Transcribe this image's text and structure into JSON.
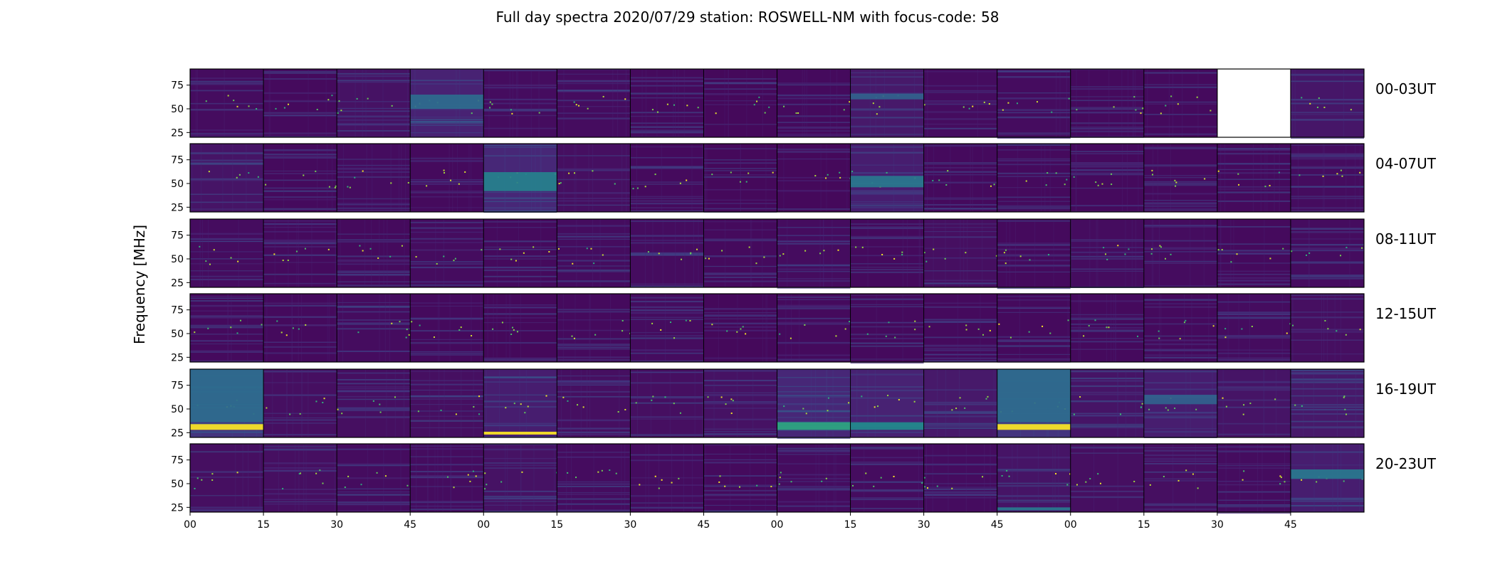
{
  "chart_data": {
    "type": "heatmap",
    "title": "Full day spectra 2020/07/29 station: ROSWELL-NM with focus-code: 58",
    "ylabel": "Frequency [MHz]",
    "xlabel": "",
    "y_range_mhz": [
      20,
      92
    ],
    "y_ticks": [
      "75",
      "50",
      "25"
    ],
    "y_tick_values": [
      75,
      50,
      25
    ],
    "x_ticks": [
      "00",
      "15",
      "30",
      "45",
      "00",
      "15",
      "30",
      "45",
      "00",
      "15",
      "30",
      "45",
      "00",
      "15",
      "30",
      "45"
    ],
    "panels_per_row": 16,
    "minutes_per_panel": 15,
    "colormap": "viridis",
    "colors": {
      "background": "#440154",
      "mid": "#3b528b",
      "teal": "#21918c",
      "green": "#5ec962",
      "yellow": "#fde725",
      "missing": "#ffffff"
    },
    "rows": [
      {
        "label": "00-03UT",
        "panel_intensity": [
          0.12,
          0.1,
          0.18,
          0.35,
          0.12,
          0.12,
          0.1,
          0.08,
          0.1,
          0.25,
          0.12,
          0.12,
          0.1,
          0.1,
          null,
          0.22
        ],
        "missing_panels": [
          14
        ]
      },
      {
        "label": "04-07UT",
        "panel_intensity": [
          0.2,
          0.1,
          0.12,
          0.1,
          0.4,
          0.15,
          0.1,
          0.08,
          0.08,
          0.3,
          0.1,
          0.1,
          0.1,
          0.1,
          0.1,
          0.12
        ],
        "missing_panels": []
      },
      {
        "label": "08-11UT",
        "panel_intensity": [
          0.12,
          0.1,
          0.1,
          0.12,
          0.1,
          0.12,
          0.12,
          0.1,
          0.12,
          0.1,
          0.15,
          0.1,
          0.12,
          0.12,
          0.1,
          0.12
        ],
        "missing_panels": []
      },
      {
        "label": "12-15UT",
        "panel_intensity": [
          0.1,
          0.1,
          0.12,
          0.1,
          0.08,
          0.1,
          0.12,
          0.08,
          0.1,
          0.1,
          0.1,
          0.1,
          0.1,
          0.1,
          0.12,
          0.15
        ],
        "missing_panels": []
      },
      {
        "label": "16-19UT",
        "panel_intensity": [
          0.55,
          0.15,
          0.15,
          0.15,
          0.3,
          0.15,
          0.15,
          0.18,
          0.4,
          0.35,
          0.25,
          0.55,
          0.2,
          0.3,
          0.2,
          0.25
        ],
        "missing_panels": []
      },
      {
        "label": "20-23UT",
        "panel_intensity": [
          0.15,
          0.15,
          0.12,
          0.12,
          0.18,
          0.12,
          0.12,
          0.1,
          0.12,
          0.12,
          0.12,
          0.2,
          0.15,
          0.15,
          0.12,
          0.3
        ],
        "missing_panels": []
      }
    ],
    "band_features": [
      {
        "row": 0,
        "panel": 3,
        "mhz": [
          50,
          65
        ],
        "level": 0.45
      },
      {
        "row": 0,
        "panel": 9,
        "mhz": [
          60,
          66
        ],
        "level": 0.4
      },
      {
        "row": 1,
        "panel": 4,
        "mhz": [
          42,
          62
        ],
        "level": 0.55
      },
      {
        "row": 1,
        "panel": 9,
        "mhz": [
          46,
          58
        ],
        "level": 0.5
      },
      {
        "row": 4,
        "panel": 0,
        "mhz": [
          28,
          34
        ],
        "level": 1.0
      },
      {
        "row": 4,
        "panel": 0,
        "mhz": [
          36,
          92
        ],
        "level": 0.45
      },
      {
        "row": 4,
        "panel": 4,
        "mhz": [
          23,
          26
        ],
        "level": 1.0
      },
      {
        "row": 4,
        "panel": 8,
        "mhz": [
          28,
          36
        ],
        "level": 0.7
      },
      {
        "row": 4,
        "panel": 9,
        "mhz": [
          28,
          36
        ],
        "level": 0.6
      },
      {
        "row": 4,
        "panel": 11,
        "mhz": [
          28,
          34
        ],
        "level": 1.0
      },
      {
        "row": 4,
        "panel": 11,
        "mhz": [
          36,
          92
        ],
        "level": 0.45
      },
      {
        "row": 4,
        "panel": 13,
        "mhz": [
          55,
          65
        ],
        "level": 0.4
      },
      {
        "row": 5,
        "panel": 15,
        "mhz": [
          55,
          65
        ],
        "level": 0.5
      },
      {
        "row": 5,
        "panel": 11,
        "mhz": [
          22,
          25
        ],
        "level": 0.5
      }
    ]
  }
}
